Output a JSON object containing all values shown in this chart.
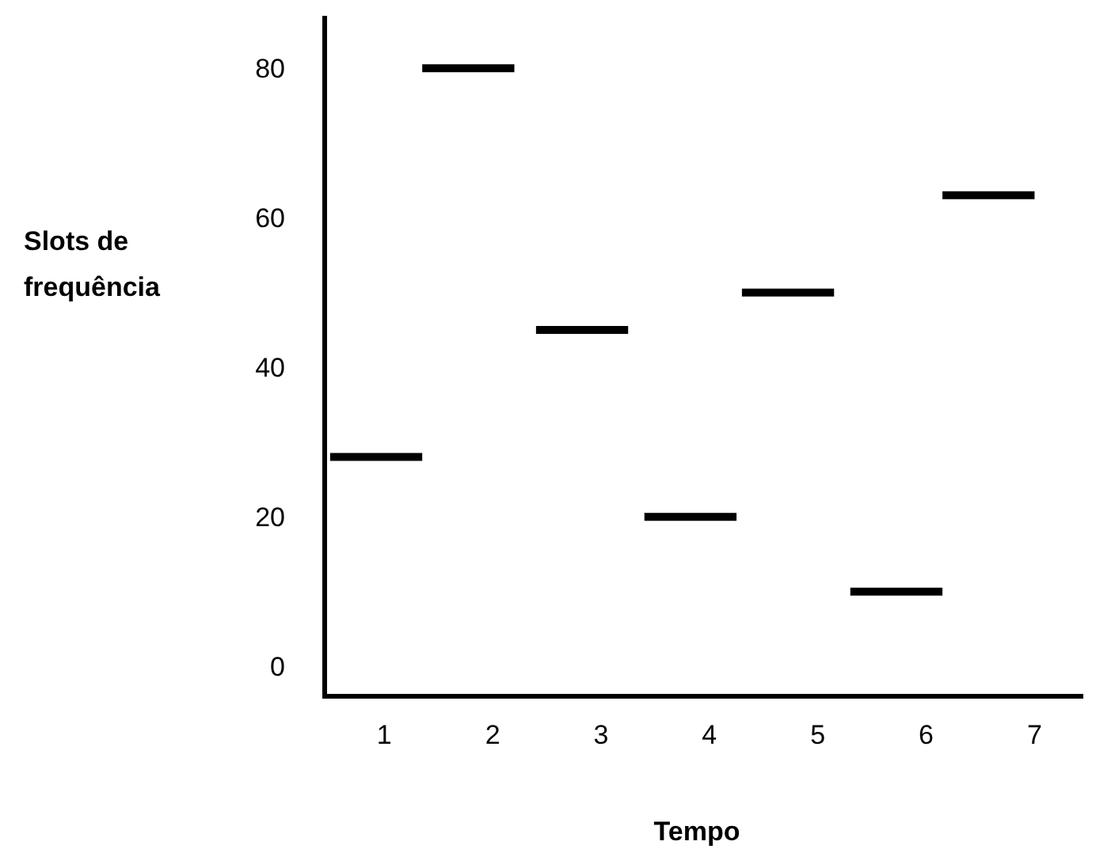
{
  "chart_data": {
    "type": "line",
    "xlabel": "Tempo",
    "ylabel": "Slots de\nfrequência",
    "xlim": [
      0.45,
      7.45
    ],
    "xticks": [
      1,
      2,
      3,
      4,
      5,
      6,
      7
    ],
    "series": [
      {
        "color": "#000000",
        "x": [
          0.5,
          1.35
        ],
        "values": [
          28,
          28
        ]
      },
      {
        "color": "#000000",
        "x": [
          1.35,
          2.2
        ],
        "values": [
          80,
          80
        ]
      },
      {
        "color": "#000000",
        "x": [
          2.4,
          3.25
        ],
        "values": [
          45,
          45
        ]
      },
      {
        "color": "#000000",
        "x": [
          3.4,
          4.25
        ],
        "values": [
          20,
          20
        ]
      },
      {
        "color": "#000000",
        "x": [
          4.3,
          5.15
        ],
        "values": [
          50,
          50
        ]
      },
      {
        "color": "#000000",
        "x": [
          5.3,
          6.15
        ],
        "values": [
          10,
          10
        ]
      },
      {
        "color": "#000000",
        "x": [
          6.15,
          7.0
        ],
        "values": [
          63,
          63
        ]
      }
    ],
    "ylim": [
      -4,
      87
    ],
    "yticks": [
      0,
      20,
      40,
      60,
      80
    ],
    "grid": false,
    "marker": "none",
    "line_style": "solid"
  }
}
